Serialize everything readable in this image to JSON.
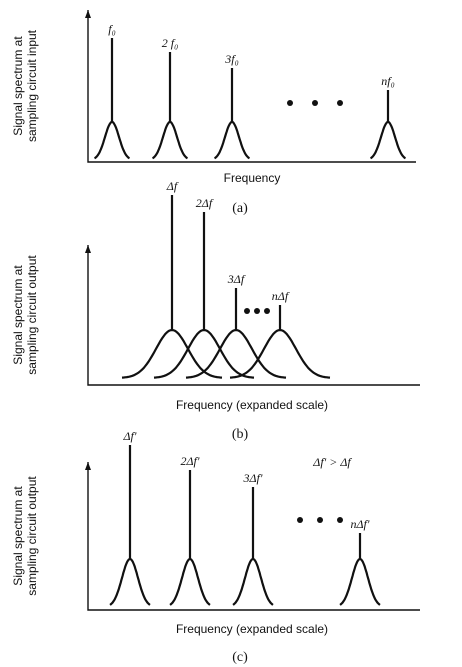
{
  "panels": [
    {
      "y_label": [
        "Signal spectrum at",
        "sampling circuit input"
      ],
      "x_label": "Frequency",
      "caption": "(a)",
      "peaks": [
        "f₀",
        "2 f₀",
        "3f₀",
        "nf₀"
      ]
    },
    {
      "y_label": [
        "Signal spectrum at",
        "sampling circuit output"
      ],
      "x_label": "Frequency (expanded scale)",
      "caption": "(b)",
      "peaks": [
        "Δf",
        "2Δf",
        "3Δf",
        "nΔf"
      ]
    },
    {
      "y_label": [
        "Signal spectrum at",
        "sampling circuit output"
      ],
      "x_label": "Frequency (expanded scale)",
      "caption": "(c)",
      "peaks": [
        "Δf'",
        "2Δf'",
        "3Δf'",
        "nΔf'"
      ],
      "note": "Δf' > Δf"
    }
  ]
}
